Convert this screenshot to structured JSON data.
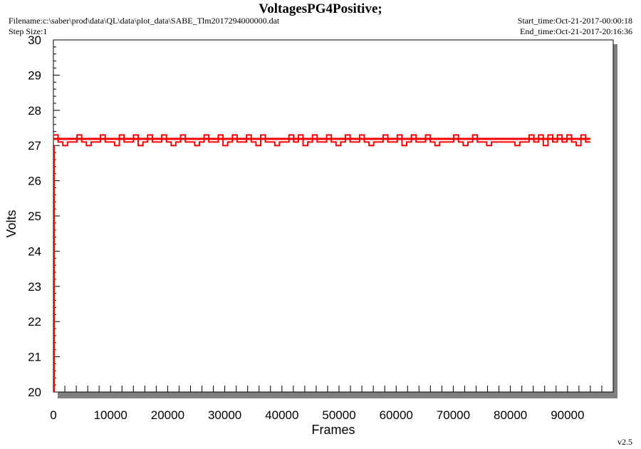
{
  "header": {
    "title": "VoltagesPG4Positive;",
    "filename": "Filename:c:\\saber\\prod\\data\\QL\\data\\plot_data\\SABE_Tlm2017294000000.dat",
    "step_size": "Step Size:1",
    "start_time": "Start_time:Oct-21-2017-00:00:18",
    "end_time": "End_time:Oct-21-2017-20:16:36"
  },
  "footer": {
    "version": "v2.5"
  },
  "colors": {
    "series": "#ff0000",
    "shadow": "#808080",
    "frame": "#000000"
  },
  "chart_data": {
    "type": "line",
    "xlabel": "Frames",
    "ylabel": "Volts",
    "xlim": [
      0,
      98000
    ],
    "ylim": [
      20,
      30
    ],
    "xticks": [
      0,
      10000,
      20000,
      30000,
      40000,
      50000,
      60000,
      70000,
      80000,
      90000
    ],
    "xtick_labels": [
      "0",
      "10000",
      "20000",
      "30000",
      "40000",
      "50000",
      "60000",
      "70000",
      "80000",
      "90000"
    ],
    "yticks": [
      20,
      21,
      22,
      23,
      24,
      25,
      26,
      27,
      28,
      29,
      30
    ],
    "ytick_labels": [
      "20",
      "21",
      "22",
      "23",
      "24",
      "25",
      "26",
      "27",
      "28",
      "29",
      "30"
    ],
    "grid": false,
    "series": [
      {
        "x_range": [
          0,
          94000
        ],
        "baseline": 27.1,
        "noise_band": [
          27.0,
          27.3
        ],
        "y_samples": [
          27.3,
          27.1,
          27.0,
          27.1,
          27.1,
          27.3,
          27.1,
          27.0,
          27.1,
          27.1,
          27.3,
          27.1,
          27.1,
          27.0,
          27.3,
          27.1,
          27.1,
          27.3,
          27.0,
          27.1,
          27.3,
          27.1,
          27.1,
          27.3,
          27.1,
          27.0,
          27.1,
          27.3,
          27.1,
          27.1,
          27.0,
          27.1,
          27.3,
          27.1,
          27.1,
          27.3,
          27.0,
          27.1,
          27.3,
          27.1,
          27.1,
          27.3,
          27.1,
          27.0,
          27.3,
          27.1,
          27.1,
          27.0,
          27.1,
          27.1,
          27.3,
          27.1,
          27.3,
          27.0,
          27.1,
          27.3,
          27.1,
          27.1,
          27.3,
          27.1,
          27.0,
          27.1,
          27.3,
          27.1,
          27.1,
          27.3,
          27.1,
          27.0,
          27.1,
          27.1,
          27.3,
          27.1,
          27.1,
          27.3,
          27.0,
          27.1,
          27.3,
          27.1,
          27.1,
          27.3,
          27.1,
          27.0,
          27.1,
          27.1,
          27.1,
          27.3,
          27.1,
          27.0,
          27.1,
          27.3,
          27.1,
          27.1,
          27.0,
          27.1,
          27.1,
          27.1,
          27.1,
          27.1,
          27.0,
          27.1,
          27.1,
          27.3,
          27.1,
          27.3,
          27.0,
          27.3,
          27.1,
          27.3,
          27.1,
          27.3,
          27.1,
          27.0,
          27.3,
          27.1,
          27.1
        ]
      }
    ]
  }
}
